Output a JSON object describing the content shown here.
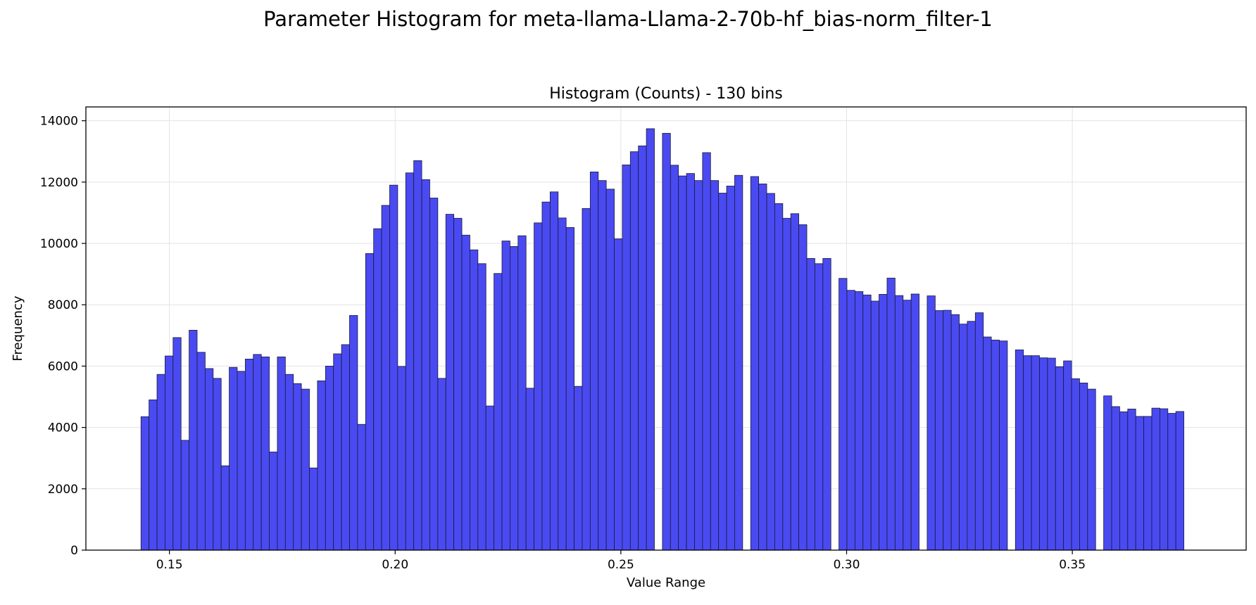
{
  "figure": {
    "suptitle": "Parameter Histogram for meta-llama-Llama-2-70b-hf_bias-norm_filter-1"
  },
  "chart_data": {
    "type": "bar",
    "title": "Histogram (Counts) - 130 bins",
    "xlabel": "Value Range",
    "ylabel": "Frequency",
    "xlim": [
      0.1315,
      0.3885
    ],
    "ylim": [
      0,
      14450
    ],
    "x_ticks": [
      0.15,
      0.2,
      0.25,
      0.3,
      0.35
    ],
    "x_tick_labels": [
      "0.15",
      "0.20",
      "0.25",
      "0.30",
      "0.35"
    ],
    "y_ticks": [
      0,
      2000,
      4000,
      6000,
      8000,
      10000,
      12000,
      14000
    ],
    "y_tick_labels": [
      "0",
      "2000",
      "4000",
      "6000",
      "8000",
      "10000",
      "12000",
      "14000"
    ],
    "grid": true,
    "bar_color": "#4a4af2",
    "edge_color": "#1a1a33",
    "bin_start": 0.1437,
    "bin_width": 0.001777,
    "values": [
      4350,
      4900,
      5730,
      6330,
      6930,
      3580,
      7170,
      6450,
      5920,
      5600,
      2750,
      5960,
      5830,
      6230,
      6380,
      6300,
      3200,
      6300,
      5730,
      5430,
      5250,
      2680,
      5520,
      6000,
      6400,
      6700,
      7650,
      4100,
      9670,
      10480,
      11240,
      11900,
      5990,
      12300,
      12700,
      12080,
      11480,
      5600,
      10950,
      10820,
      10270,
      9790,
      9340,
      4700,
      9020,
      10080,
      9900,
      10250,
      5280,
      10670,
      11350,
      11680,
      10830,
      10520,
      5340,
      11140,
      12330,
      12050,
      11770,
      10150,
      12560,
      12990,
      13180,
      13740,
      0,
      13590,
      12550,
      12200,
      12280,
      12050,
      12960,
      12050,
      11640,
      11870,
      12220,
      0,
      12180,
      11940,
      11630,
      11300,
      10820,
      10970,
      10610,
      9510,
      9340,
      9510,
      0,
      8860,
      8470,
      8430,
      8320,
      8120,
      8340,
      8870,
      8300,
      8150,
      8350,
      0,
      8290,
      7810,
      7820,
      7680,
      7370,
      7460,
      7740,
      6950,
      6850,
      6820,
      0,
      6530,
      6340,
      6340,
      6270,
      6260,
      5980,
      6170,
      5590,
      5450,
      5250,
      0,
      5030,
      4680,
      4510,
      4600,
      4360,
      4360,
      4630,
      4610,
      4460,
      4520
    ]
  }
}
